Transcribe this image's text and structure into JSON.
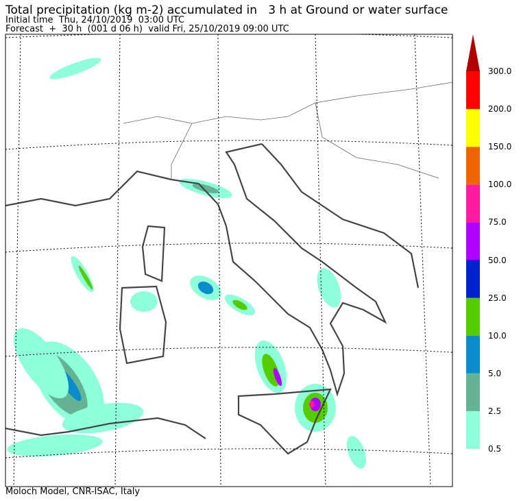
{
  "header": {
    "title": "Total precipitation (kg m-2) accumulated in   3 h at Ground or water surface",
    "initial_time": "Initial time  Thu, 24/10/2019  03:00 UTC",
    "forecast": "Forecast  +  30 h  (001 d 06 h)  valid Fri, 25/10/2019 09:00 UTC"
  },
  "colorbar": {
    "labels": [
      "0.5",
      "2.5",
      "5.0",
      "10.0",
      "25.0",
      "50.0",
      "75.0",
      "100.0",
      "150.0",
      "200.0",
      "300.0"
    ],
    "colors": [
      "#8effd8",
      "#64b394",
      "#0a8ccc",
      "#55cc00",
      "#0022cc",
      "#b000ff",
      "#ff1aa0",
      "#ee6600",
      "#ffff00",
      "#ff0000"
    ],
    "extend_color": "#b00000"
  },
  "footer": "Moloch Model, CNR-ISAC, Italy"
}
